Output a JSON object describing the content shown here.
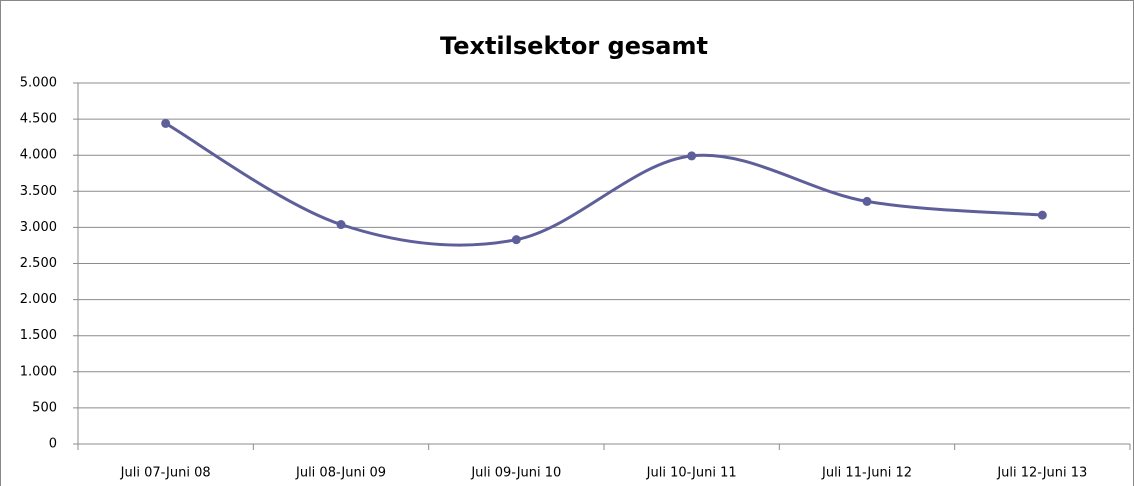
{
  "chart_data": {
    "type": "line",
    "title": "Textilsektor gesamt",
    "categories": [
      "Juli 07-Juni 08",
      "Juli 08-Juni 09",
      "Juli 09-Juni 10",
      "Juli 10-Juni 11",
      "Juli 11-Juni 12",
      "Juli 12-Juni 13"
    ],
    "series": [
      {
        "name": "Textilsektor gesamt",
        "color": "#5e5f9a",
        "values": [
          4440,
          3040,
          2830,
          3990,
          3360,
          3170
        ]
      }
    ],
    "ylim": [
      0,
      5000
    ],
    "yticks": [
      0,
      500,
      {
        "value": 1000,
        "label": "1.000"
      },
      {
        "value": 1500,
        "label": "1.500"
      },
      {
        "value": 2000,
        "label": "2.000"
      },
      {
        "value": 2500,
        "label": "2.500"
      },
      {
        "value": 3000,
        "label": "3.000"
      },
      {
        "value": 3500,
        "label": "3.500"
      },
      {
        "value": 4000,
        "label": "4.000"
      },
      {
        "value": 4500,
        "label": "4.500"
      },
      {
        "value": 5000,
        "label": "5.000"
      }
    ],
    "grid": true,
    "smooth": true
  }
}
